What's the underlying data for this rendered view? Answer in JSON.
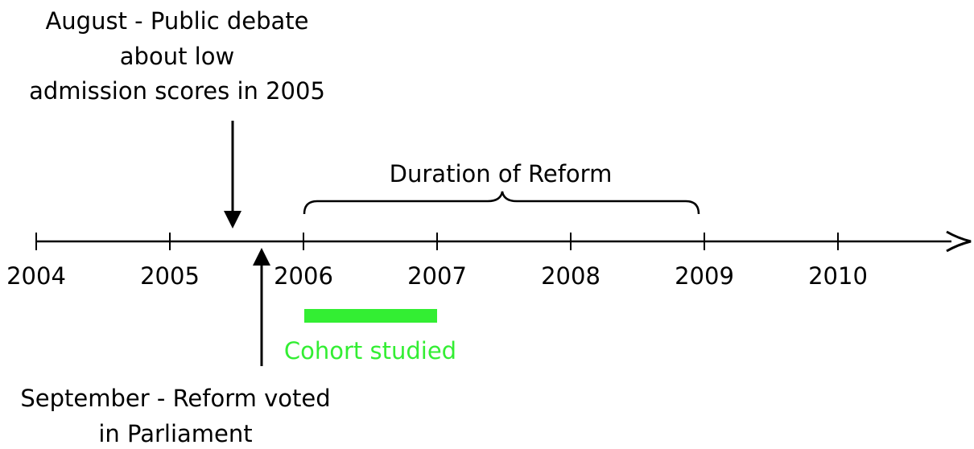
{
  "timeline": {
    "ticks": [
      "2004",
      "2005",
      "2006",
      "2007",
      "2008",
      "2009",
      "2010"
    ],
    "top_event": {
      "lines": [
        "August - Public debate",
        "about low",
        "admission scores in 2005"
      ]
    },
    "bottom_event": {
      "lines": [
        "September - Reform voted",
        "in Parliament"
      ]
    },
    "span_label": "Duration of Reform",
    "cohort_label": "Cohort studied"
  }
}
